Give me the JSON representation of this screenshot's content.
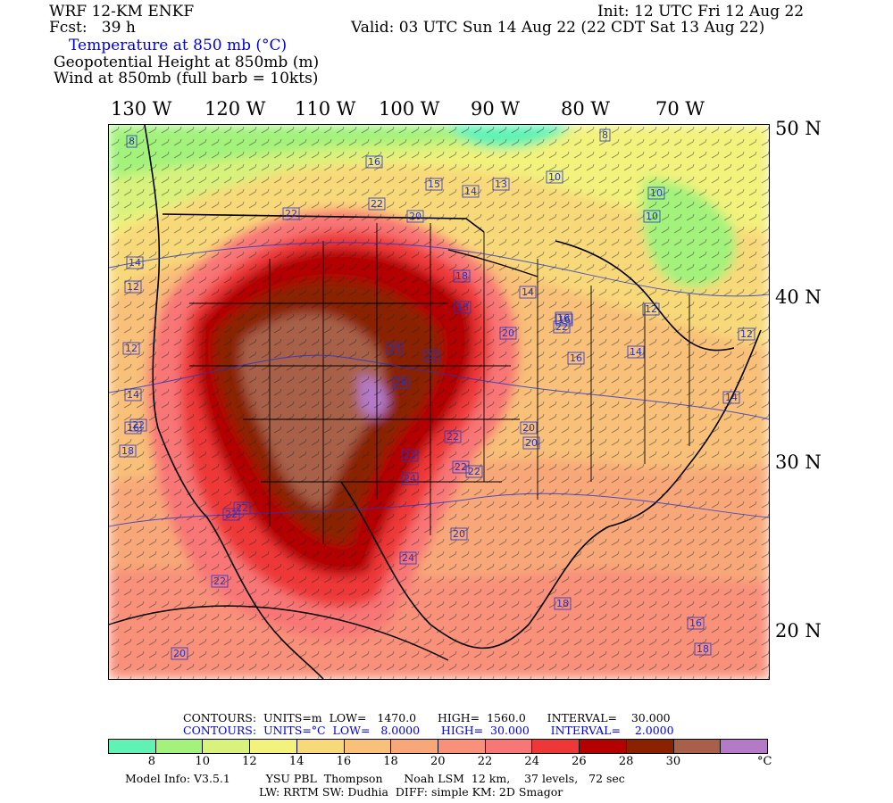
{
  "header": {
    "model": "WRF 12-KM ENKF",
    "fcst": "Fcst:   39 h",
    "init": "Init: 12 UTC Fri 12 Aug 22",
    "valid": "Valid: 03 UTC Sun 14 Aug 22 (22 CDT Sat 13 Aug 22)",
    "field1": "Temperature at 850 mb (°C)",
    "field2": "Geopotential Height at 850mb (m)",
    "field3": "Wind at 850mb (full barb = 10kts)"
  },
  "lon_labels": [
    "130 W",
    "120 W",
    "110 W",
    "100 W",
    "90 W",
    "80 W",
    "70 W"
  ],
  "lat_labels": [
    "50 N",
    "40 N",
    "30 N",
    "20 N"
  ],
  "map_labels": [
    "8",
    "8",
    "16",
    "15",
    "14",
    "13",
    "10",
    "10",
    "10",
    "22",
    "22",
    "20",
    "18",
    "14",
    "16",
    "14",
    "12",
    "12",
    "14",
    "16",
    "18",
    "22",
    "18",
    "20",
    "16",
    "16",
    "12",
    "14",
    "12",
    "14",
    "20",
    "22",
    "26",
    "22",
    "22",
    "28",
    "24",
    "22",
    "22",
    "24",
    "20",
    "20",
    "22",
    "18",
    "16",
    "18",
    "20",
    "22",
    "22",
    "22"
  ],
  "contours": {
    "row1": "CONTOURS:  UNITS=m  LOW=   1470.0      HIGH=  1560.0      INTERVAL=    30.000",
    "row2": "CONTOURS:  UNITS=°C  LOW=   8.0000      HIGH=  30.000      INTERVAL=    2.0000"
  },
  "colorbar": {
    "colors": [
      "#5ff2b4",
      "#a2f27c",
      "#d8f27c",
      "#f2f27c",
      "#f8d97a",
      "#f8c078",
      "#f8a878",
      "#f8907a",
      "#f87676",
      "#ee3838",
      "#b40000",
      "#8a2200",
      "#a86048",
      "#b47ac8"
    ],
    "labels": [
      "8",
      "10",
      "12",
      "14",
      "16",
      "18",
      "20",
      "22",
      "24",
      "26",
      "28",
      "30"
    ],
    "unit": "°C"
  },
  "footer": {
    "line1": "Model Info: V3.5.1          YSU PBL  Thompson      Noah LSM  12 km,    37 levels,   72 sec",
    "line2": "LW: RRTM SW: Dudhia  DIFF: simple KM: 2D Smagor"
  }
}
